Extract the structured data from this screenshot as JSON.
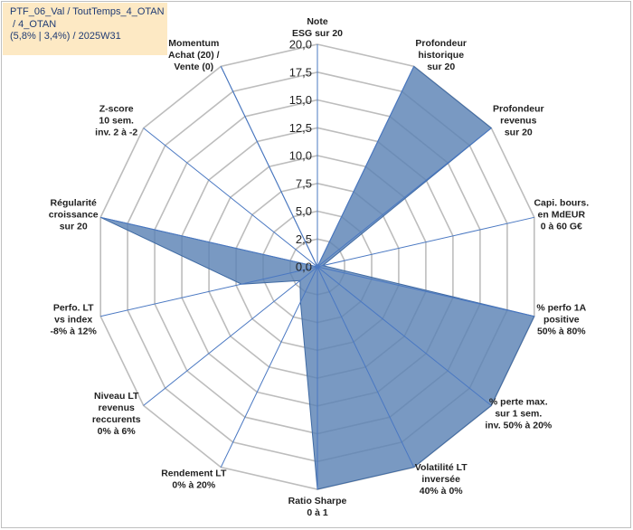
{
  "chart_data": {
    "type": "radar",
    "title_lines": [
      "PTF_06_Val / ToutTemps_4_OTAN",
      " / 4_OTAN",
      "(5,8% | 3,4%) / 2025W31"
    ],
    "r_ticks": [
      "0,0",
      "2,5",
      "5,0",
      "7,5",
      "10,0",
      "12,5",
      "15,0",
      "17,5",
      "20,0"
    ],
    "r_max": 20,
    "grid": true,
    "colors": {
      "fill": "#5b82b5",
      "fill_opacity": 0.82,
      "stroke": "#3f6aa3",
      "grid": "#bdbdbd",
      "spoke": "#4a78c2",
      "frame": "#bfbfbf",
      "title_bg": "#fde9c4",
      "title_text": "#1f3b73"
    },
    "axes": [
      {
        "label": [
          "Note",
          "ESG sur 20"
        ]
      },
      {
        "label": [
          "Profondeur",
          "historique",
          "sur 20"
        ]
      },
      {
        "label": [
          "Profondeur",
          "revenus",
          "sur 20"
        ]
      },
      {
        "label": [
          "Capi. bours.",
          "en MdEUR",
          "0 à 60 G€"
        ]
      },
      {
        "label": [
          "% perfo 1A",
          "positive",
          "50% à 80%"
        ]
      },
      {
        "label": [
          "% perte max.",
          "sur 1 sem.",
          "inv. 50% à 20%"
        ]
      },
      {
        "label": [
          "Volatilité LT",
          "inversée",
          "40% à 0%"
        ]
      },
      {
        "label": [
          "Ratio Sharpe",
          "0 à 1"
        ]
      },
      {
        "label": [
          "Rendement LT",
          "0% à 20%"
        ]
      },
      {
        "label": [
          "Niveau LT",
          "revenus",
          "reccurents",
          "0% à 6%"
        ]
      },
      {
        "label": [
          "Perfo. LT",
          "vs index",
          "-8% à 12%"
        ]
      },
      {
        "label": [
          "Régularité",
          "croissance",
          "sur 20"
        ]
      },
      {
        "label": [
          "Z-score",
          "10 sem.",
          "inv. 2 à -2"
        ]
      },
      {
        "label": [
          "Momentum",
          "Achat (20) /",
          "Vente (0)"
        ]
      }
    ],
    "series": [
      {
        "values": [
          0,
          20,
          20,
          0.5,
          20,
          20,
          20,
          20,
          3.5,
          2,
          7,
          20,
          0,
          20
        ]
      }
    ]
  }
}
